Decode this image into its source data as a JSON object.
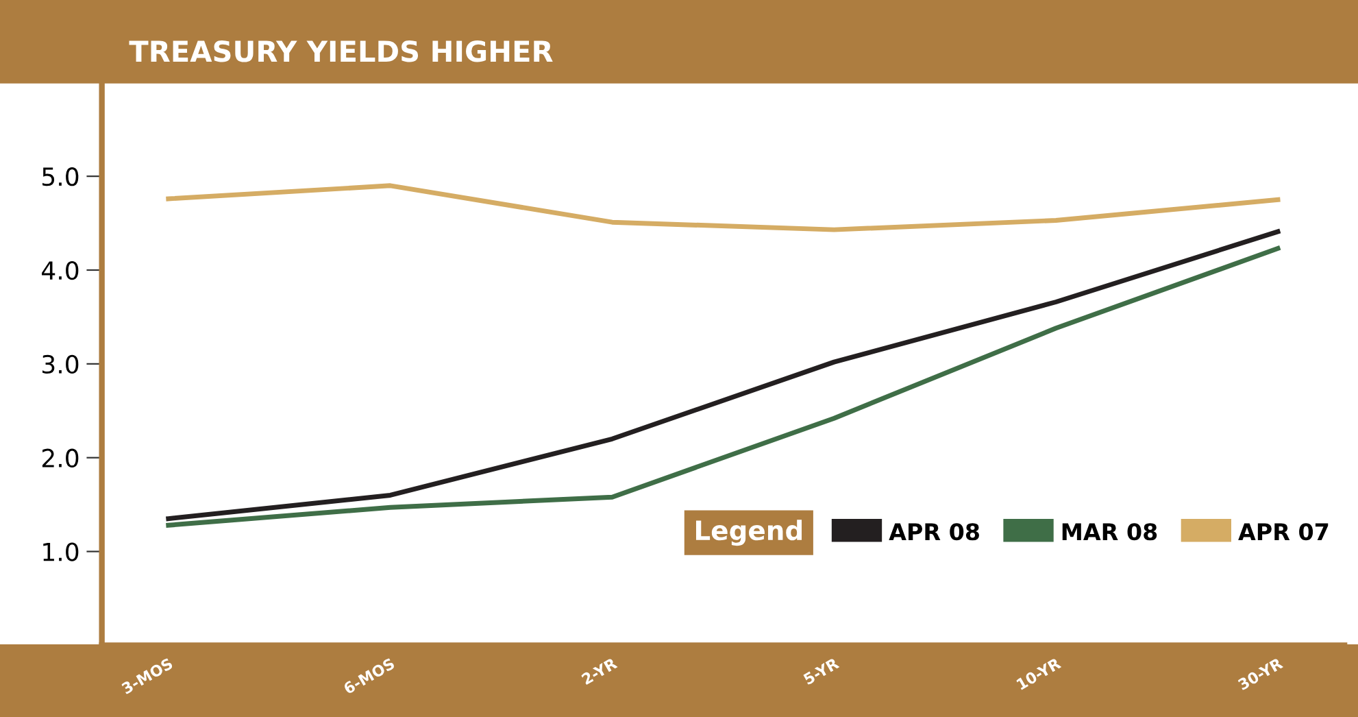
{
  "chart_data": {
    "type": "line",
    "title": "TREASURY YIELDS HIGHER",
    "legend_title": "Legend",
    "categories": [
      "3-MOS",
      "6-MOS",
      "2-YR",
      "5-YR",
      "10-YR",
      "30-YR"
    ],
    "series": [
      {
        "name": "APR 08",
        "color": "#231f20",
        "values": [
          1.35,
          1.6,
          2.2,
          3.02,
          3.66,
          4.41
        ]
      },
      {
        "name": "MAR 08",
        "color": "#3f6e47",
        "values": [
          1.28,
          1.47,
          1.58,
          2.42,
          3.38,
          4.23
        ]
      },
      {
        "name": "APR 07",
        "color": "#d5ac64",
        "values": [
          4.76,
          4.9,
          4.51,
          4.43,
          4.53,
          4.75
        ]
      }
    ],
    "ylim": [
      0,
      6.0
    ],
    "yticks": [
      {
        "value": 1.0,
        "label": "1.0"
      },
      {
        "value": 2.0,
        "label": "2.0"
      },
      {
        "value": 3.0,
        "label": "3.0"
      },
      {
        "value": 4.0,
        "label": "4.0"
      },
      {
        "value": 5.0,
        "label": "5.0"
      }
    ],
    "grid": false,
    "legend": "lower right",
    "marker": "none",
    "line_style": "solid"
  }
}
